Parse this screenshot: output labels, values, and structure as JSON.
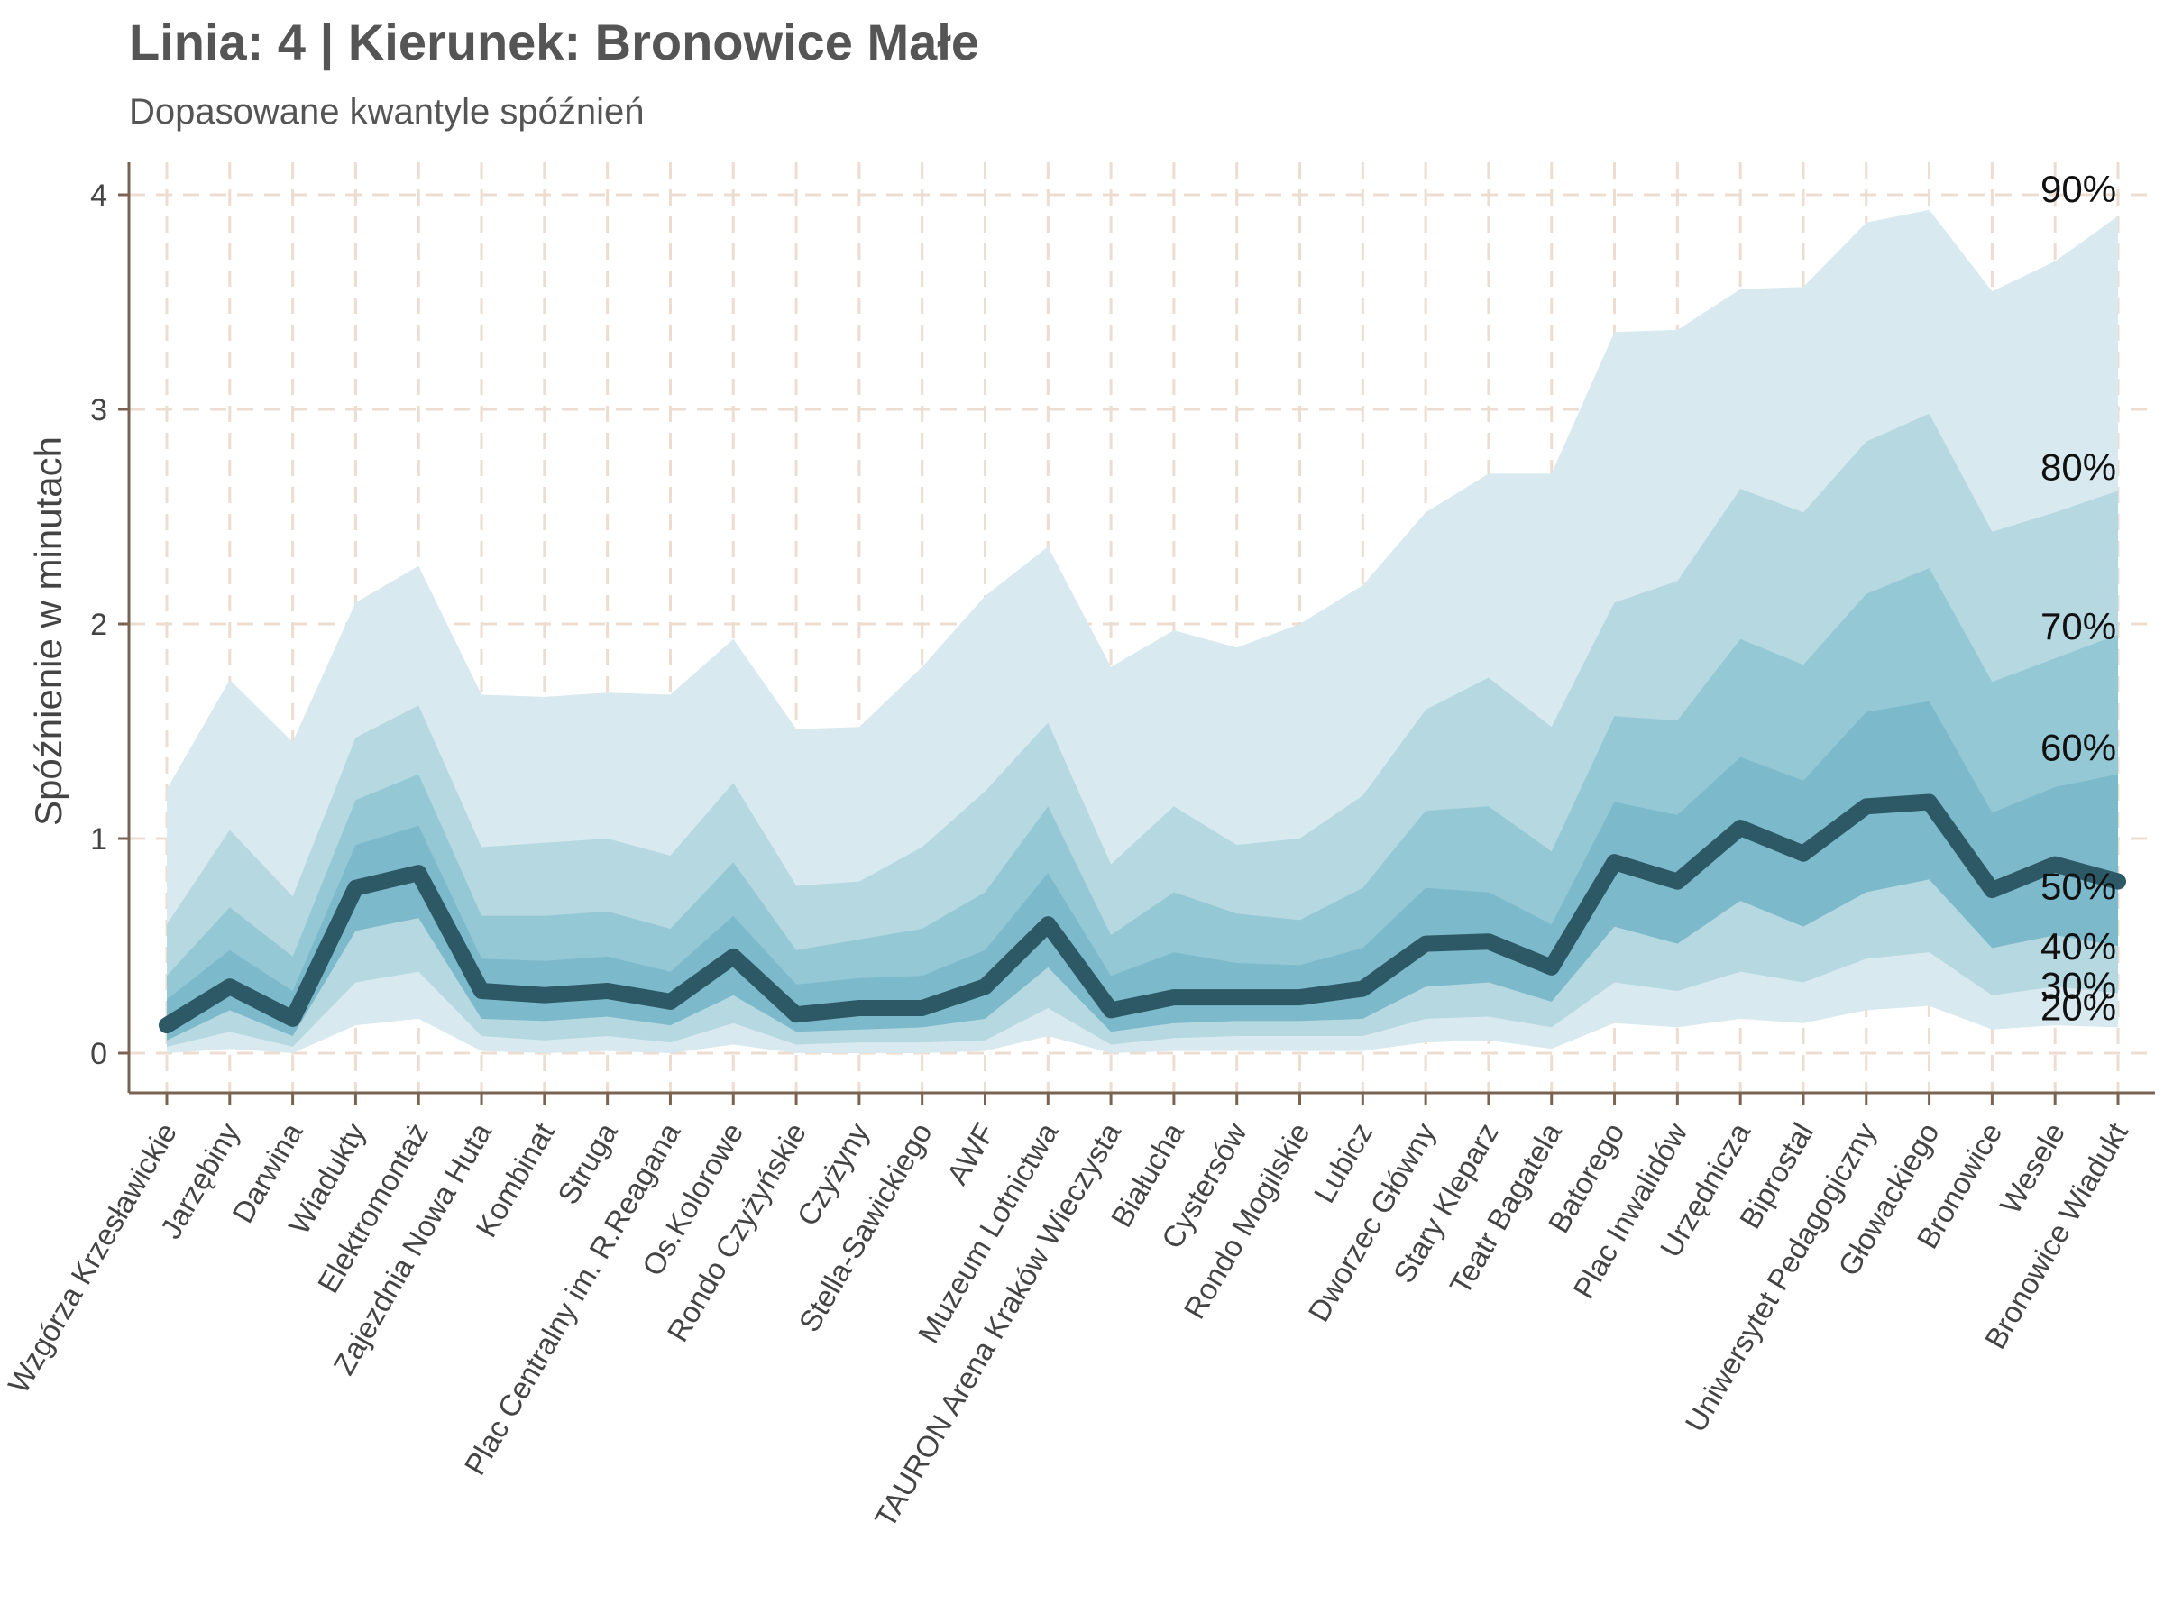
{
  "chart_data": {
    "type": "area",
    "title": "Linia: 4 | Kierunek: Bronowice Małe",
    "subtitle": "Dopasowane kwantyle spóźnień",
    "xlabel": "",
    "ylabel": "Spóźnienie w minutach",
    "ylim": [
      -0.2,
      4.15
    ],
    "yticks": [
      0,
      1,
      2,
      3,
      4
    ],
    "grid": true,
    "categories": [
      "Wzgórza Krzesławickie",
      "Jarzębiny",
      "Darwina",
      "Wiadukty",
      "Elektromontaż",
      "Zajezdnia Nowa Huta",
      "Kombinat",
      "Struga",
      "Plac Centralny im. R.Reagana",
      "Os.Kolorowe",
      "Rondo Czyżyńskie",
      "Czyżyny",
      "Stella-Sawickiego",
      "AWF",
      "Muzeum Lotnictwa",
      "TAURON Arena Kraków Wieczysta",
      "Białucha",
      "Cystersów",
      "Rondo Mogilskie",
      "Lubicz",
      "Dworzec Główny",
      "Stary Kleparz",
      "Teatr Bagatela",
      "Batorego",
      "Plac Inwalidów",
      "Urzędnicza",
      "Biprostal",
      "Uniwersytet Pedagogiczny",
      "Głowackiego",
      "Bronowice",
      "Wesele",
      "Bronowice Wiadukt"
    ],
    "quantile_labels": [
      "90%",
      "80%",
      "70%",
      "60%",
      "50%",
      "40%",
      "30%",
      "20%"
    ],
    "series": [
      {
        "name": "90%",
        "values": [
          1.23,
          1.74,
          1.45,
          2.1,
          2.27,
          1.67,
          1.66,
          1.68,
          1.67,
          1.93,
          1.51,
          1.52,
          1.8,
          2.13,
          2.36,
          1.8,
          1.97,
          1.89,
          2.0,
          2.18,
          2.52,
          2.7,
          2.7,
          3.36,
          3.37,
          3.56,
          3.57,
          3.87,
          3.93,
          3.55,
          3.69,
          3.9
        ]
      },
      {
        "name": "80%",
        "values": [
          0.6,
          1.04,
          0.73,
          1.47,
          1.62,
          0.96,
          0.98,
          1.0,
          0.92,
          1.26,
          0.78,
          0.8,
          0.96,
          1.22,
          1.54,
          0.88,
          1.15,
          0.97,
          1.0,
          1.2,
          1.6,
          1.75,
          1.52,
          2.1,
          2.2,
          2.63,
          2.52,
          2.85,
          2.98,
          2.43,
          2.52,
          2.62
        ]
      },
      {
        "name": "70%",
        "values": [
          0.36,
          0.68,
          0.45,
          1.18,
          1.3,
          0.64,
          0.64,
          0.66,
          0.58,
          0.89,
          0.48,
          0.53,
          0.58,
          0.75,
          1.15,
          0.55,
          0.75,
          0.65,
          0.62,
          0.77,
          1.13,
          1.15,
          0.94,
          1.57,
          1.55,
          1.93,
          1.81,
          2.14,
          2.26,
          1.73,
          1.84,
          1.95
        ]
      },
      {
        "name": "60%",
        "values": [
          0.25,
          0.48,
          0.29,
          0.97,
          1.06,
          0.44,
          0.43,
          0.45,
          0.38,
          0.64,
          0.32,
          0.35,
          0.36,
          0.48,
          0.84,
          0.36,
          0.47,
          0.42,
          0.41,
          0.49,
          0.77,
          0.75,
          0.6,
          1.17,
          1.11,
          1.38,
          1.27,
          1.59,
          1.64,
          1.12,
          1.24,
          1.3
        ]
      },
      {
        "name": "50%",
        "values": [
          0.13,
          0.31,
          0.16,
          0.77,
          0.84,
          0.29,
          0.27,
          0.29,
          0.24,
          0.45,
          0.18,
          0.21,
          0.21,
          0.31,
          0.6,
          0.2,
          0.26,
          0.26,
          0.26,
          0.3,
          0.51,
          0.52,
          0.4,
          0.89,
          0.8,
          1.05,
          0.93,
          1.15,
          1.17,
          0.76,
          0.88,
          0.8
        ]
      },
      {
        "name": "40%",
        "values": [
          0.06,
          0.2,
          0.08,
          0.57,
          0.63,
          0.16,
          0.15,
          0.17,
          0.13,
          0.27,
          0.1,
          0.11,
          0.12,
          0.16,
          0.4,
          0.1,
          0.14,
          0.15,
          0.15,
          0.16,
          0.31,
          0.33,
          0.24,
          0.59,
          0.51,
          0.71,
          0.59,
          0.75,
          0.81,
          0.49,
          0.55,
          0.5
        ]
      },
      {
        "name": "30%",
        "values": [
          0.03,
          0.1,
          0.03,
          0.33,
          0.38,
          0.08,
          0.06,
          0.08,
          0.05,
          0.14,
          0.04,
          0.05,
          0.05,
          0.06,
          0.21,
          0.04,
          0.07,
          0.08,
          0.08,
          0.08,
          0.16,
          0.17,
          0.12,
          0.33,
          0.29,
          0.38,
          0.33,
          0.44,
          0.47,
          0.27,
          0.31,
          0.28
        ]
      },
      {
        "name": "20%",
        "values": [
          0.0,
          0.02,
          0.0,
          0.13,
          0.16,
          0.01,
          0.0,
          0.01,
          0.0,
          0.04,
          0.0,
          0.0,
          0.0,
          0.01,
          0.08,
          0.0,
          0.01,
          0.01,
          0.01,
          0.01,
          0.05,
          0.06,
          0.02,
          0.14,
          0.12,
          0.16,
          0.14,
          0.2,
          0.22,
          0.11,
          0.13,
          0.12
        ]
      }
    ],
    "colors": {
      "band_outer": "#d8e9ef",
      "band_2": "#b5d8e1",
      "band_3": "#95c8d5",
      "band_4": "#7cbacb",
      "median_line": "#2d5966",
      "axis": "#7a6350",
      "grid": "#eddcd0"
    }
  }
}
